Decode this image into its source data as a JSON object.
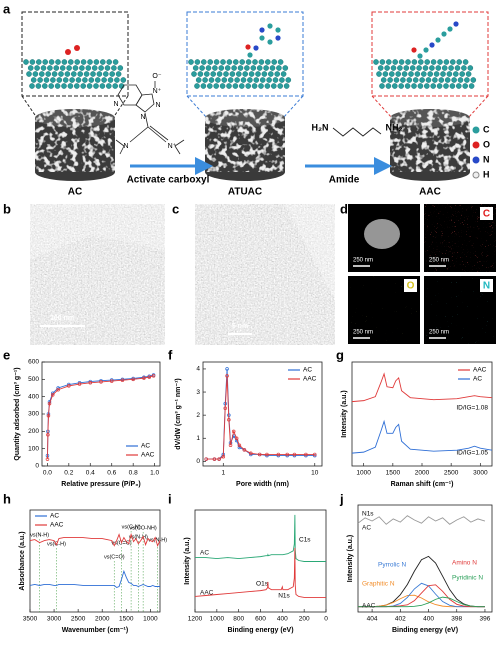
{
  "scheme": {
    "label": "a",
    "materials": [
      "AC",
      "ATUAC",
      "AAC"
    ],
    "steps": [
      "Activate carboxyl",
      "Amide"
    ],
    "reagent_labels": [
      "O⁻",
      "N⁺",
      "N",
      "N",
      "N",
      "N",
      "N⁺"
    ],
    "diamine": [
      "H₂N",
      "NH₂"
    ],
    "legend": [
      "C",
      "O",
      "N",
      "H"
    ]
  },
  "images": [
    {
      "label": "b",
      "scale_bar": "100 nm"
    },
    {
      "label": "c",
      "scale_bar": "5 nm"
    },
    {
      "label": "d",
      "tiles": [
        {
          "scale_bar": "250 nm"
        },
        {
          "scale_bar": "250 nm",
          "element": "C"
        },
        {
          "scale_bar": "250 nm",
          "element": "O"
        },
        {
          "scale_bar": "250 nm",
          "element": "N"
        }
      ]
    }
  ],
  "chart_data": [
    {
      "panel": "e",
      "type": "line",
      "xlabel": "Relative pressure (P/P₀)",
      "ylabel": "Quantity adsorbed (cm³ g⁻¹)",
      "x": [
        0.001,
        0.005,
        0.01,
        0.02,
        0.05,
        0.1,
        0.2,
        0.3,
        0.4,
        0.5,
        0.6,
        0.7,
        0.8,
        0.9,
        0.95,
        0.99
      ],
      "xlim": [
        -0.05,
        1.05
      ],
      "xticks": [
        {
          "value": 0,
          "label": "0.0"
        },
        0.2,
        0.4,
        0.6,
        0.8,
        {
          "value": 1,
          "label": "1.0"
        }
      ],
      "ylim": [
        0,
        600
      ],
      "yticks": [
        0,
        100,
        200,
        300,
        400,
        500,
        600
      ],
      "markers": true,
      "legend": "lower right",
      "series": [
        {
          "name": "AC",
          "color": "#2f6fd6",
          "values": [
            60,
            200,
            300,
            370,
            420,
            450,
            470,
            480,
            487,
            492,
            496,
            500,
            505,
            512,
            518,
            525
          ]
        },
        {
          "name": "AAC",
          "color": "#e03a3a",
          "values": [
            40,
            180,
            290,
            360,
            410,
            440,
            462,
            473,
            480,
            485,
            490,
            495,
            500,
            507,
            513,
            520
          ]
        }
      ]
    },
    {
      "panel": "f",
      "type": "line",
      "xlabel": "Pore width (nm)",
      "ylabel": "dV/dW (cm³ g⁻¹ nm⁻¹)",
      "log_x": true,
      "x": [
        0.65,
        0.8,
        0.9,
        1.0,
        1.05,
        1.1,
        1.15,
        1.2,
        1.3,
        1.4,
        1.5,
        1.7,
        2,
        2.5,
        3,
        4,
        5,
        6,
        8,
        10
      ],
      "xlim": [
        0.6,
        12
      ],
      "xticks": [
        1,
        10
      ],
      "ylim": [
        -0.2,
        4.3
      ],
      "yticks": [
        0,
        1,
        2,
        3,
        4
      ],
      "markers": true,
      "legend": "upper right",
      "series": [
        {
          "name": "AC",
          "color": "#2f6fd6",
          "values": [
            0.1,
            0.1,
            0.1,
            0.3,
            2.5,
            4.0,
            2.0,
            0.8,
            1.1,
            0.9,
            0.6,
            0.5,
            0.3,
            0.3,
            0.25,
            0.25,
            0.25,
            0.25,
            0.25,
            0.25
          ]
        },
        {
          "name": "AAC",
          "color": "#e03a3a",
          "values": [
            0.1,
            0.1,
            0.1,
            0.2,
            2.3,
            3.7,
            1.8,
            0.7,
            1.3,
            1.0,
            0.7,
            0.5,
            0.35,
            0.3,
            0.3,
            0.3,
            0.3,
            0.3,
            0.3,
            0.3
          ]
        }
      ]
    },
    {
      "panel": "g",
      "type": "line",
      "xlabel": "Raman shift (cm⁻¹)",
      "ylabel": "Intensity (a.u.)",
      "x": [
        800,
        1000,
        1200,
        1300,
        1350,
        1400,
        1500,
        1550,
        1600,
        1650,
        1800,
        2200,
        2600,
        2800,
        2900,
        3000,
        3200
      ],
      "xlim": [
        800,
        3200
      ],
      "xticks": [
        1000,
        1500,
        2000,
        2500,
        3000
      ],
      "ylim": [
        0,
        10.5
      ],
      "legend": "upper right",
      "annotations": [
        "ID/IG=1.08",
        "ID/IG=1.05"
      ],
      "series": [
        {
          "name": "AAC",
          "color": "#e03a3a",
          "values": [
            6.5,
            6.6,
            7.0,
            8.5,
            9.3,
            8.0,
            7.9,
            8.6,
            8.9,
            7.6,
            6.9,
            6.7,
            6.8,
            7.0,
            7.1,
            7.0,
            6.9
          ]
        },
        {
          "name": "AC",
          "color": "#2f6fd6",
          "values": [
            1.3,
            1.4,
            1.9,
            3.6,
            4.5,
            3.3,
            3.3,
            3.9,
            4.2,
            2.5,
            1.7,
            1.5,
            1.6,
            1.8,
            2.0,
            1.8,
            1.6
          ]
        }
      ]
    },
    {
      "panel": "h",
      "type": "line",
      "xlabel": "Wavenumber (cm⁻¹)",
      "ylabel": "Absorbance (a.u.)",
      "x": [
        3500,
        3400,
        3300,
        3200,
        3100,
        3000,
        2950,
        2900,
        2800,
        2600,
        2400,
        2200,
        2000,
        1900,
        1800,
        1750,
        1700,
        1650,
        1600,
        1550,
        1500,
        1450,
        1400,
        1350,
        1300,
        1250,
        1200,
        1150,
        1100,
        1050,
        1000,
        950,
        900,
        850,
        800
      ],
      "xlim": [
        3500,
        800
      ],
      "xticks": [
        3500,
        3000,
        2500,
        2000,
        1500,
        1000
      ],
      "ylim": [
        0,
        10
      ],
      "legend": "upper left",
      "annotations": [
        {
          "text": "νs(N-H)",
          "x": 3300
        },
        {
          "text": "νs(C-H)",
          "x": 2950
        },
        {
          "text": "νs(C=O)",
          "x": 1750
        },
        {
          "text": "νs(C=C)",
          "x": 1600
        },
        {
          "text": "νs(C-N)",
          "x": 1400
        },
        {
          "text": "νs(N-H)",
          "x": 1250
        },
        {
          "text": "νs(CO-NH)",
          "x": 1150
        },
        {
          "text": "νs(N-H)",
          "x": 850
        }
      ],
      "series": [
        {
          "name": "AC",
          "color": "#2f6fd6",
          "values": [
            2.6,
            2.7,
            2.6,
            2.7,
            2.7,
            2.6,
            2.6,
            2.7,
            2.7,
            2.7,
            2.6,
            2.6,
            2.6,
            2.6,
            2.6,
            2.6,
            2.4,
            2.5,
            3.2,
            4.0,
            3.4,
            2.9,
            2.8,
            2.6,
            2.6,
            2.5,
            2.6,
            2.7,
            2.6,
            2.5,
            2.5,
            2.6,
            2.5,
            2.5,
            2.5
          ]
        },
        {
          "name": "AAC",
          "color": "#e03a3a",
          "values": [
            7.0,
            7.1,
            6.8,
            7.0,
            7.1,
            7.0,
            6.6,
            7.2,
            7.3,
            7.3,
            7.3,
            7.2,
            7.2,
            7.1,
            7.0,
            6.5,
            7.0,
            7.6,
            6.8,
            7.3,
            6.9,
            6.7,
            7.6,
            6.9,
            7.2,
            6.7,
            7.0,
            7.4,
            6.6,
            7.2,
            7.0,
            6.9,
            7.3,
            6.5,
            7.0
          ]
        }
      ]
    },
    {
      "panel": "i",
      "type": "line",
      "xlabel": "Binding energy (eV)",
      "ylabel": "Intensity (a.u.)",
      "x": [
        1200,
        1100,
        1000,
        900,
        800,
        700,
        600,
        550,
        535,
        532,
        529,
        500,
        450,
        410,
        400,
        395,
        350,
        300,
        290,
        285,
        282,
        275,
        250,
        200,
        100,
        0
      ],
      "xlim": [
        1200,
        0
      ],
      "xticks": [
        1200,
        1000,
        800,
        600,
        400,
        200,
        0
      ],
      "ylim": [
        0,
        10.5
      ],
      "legend": "inline",
      "annotations": [
        "C1s",
        "O1s",
        "N1s"
      ],
      "series": [
        {
          "name": "AC",
          "color": "#2aa876",
          "values": [
            5.6,
            5.6,
            5.5,
            5.6,
            5.5,
            5.6,
            5.7,
            5.8,
            5.8,
            5.9,
            5.8,
            5.9,
            5.9,
            5.9,
            5.9,
            5.9,
            6.0,
            6.3,
            7.0,
            10.0,
            6.4,
            5.5,
            5.3,
            5.2,
            5.2,
            5.2
          ]
        },
        {
          "name": "AAC",
          "color": "#e03a3a",
          "values": [
            1.6,
            1.7,
            1.8,
            1.9,
            2.0,
            2.1,
            2.2,
            2.3,
            2.5,
            3.1,
            2.5,
            2.3,
            2.3,
            2.3,
            2.6,
            2.3,
            2.3,
            2.6,
            3.5,
            6.6,
            2.8,
            1.8,
            1.6,
            1.5,
            1.5,
            1.5
          ]
        }
      ]
    },
    {
      "panel": "j",
      "type": "line",
      "xlabel": "Binding energy (eV)",
      "ylabel": "Intensity (a.u.)",
      "x": [
        405,
        404.5,
        404,
        403.5,
        403,
        402.5,
        402,
        401.5,
        401,
        400.5,
        400,
        399.5,
        399,
        398.5,
        398,
        397.5,
        397,
        396.5,
        396
      ],
      "xlim": [
        405,
        395.5
      ],
      "xticks": [
        404,
        402,
        400,
        398,
        396
      ],
      "ylim": [
        0,
        10
      ],
      "legend": "inline",
      "annotations": [
        "N1s"
      ],
      "series": [
        {
          "name": "AC",
          "color": "#9a9a9a",
          "values": [
            8.3,
            8.8,
            8.5,
            8.9,
            8.2,
            8.7,
            8.4,
            9.0,
            8.6,
            8.3,
            8.9,
            8.5,
            8.8,
            8.2,
            8.6,
            8.9,
            8.4,
            8.7,
            8.5
          ]
        },
        {
          "name": "AAC",
          "color": "#222222",
          "values": [
            0.5,
            0.5,
            0.5,
            0.54,
            0.65,
            0.96,
            1.62,
            2.57,
            3.82,
            4.88,
            5.2,
            4.58,
            3.35,
            2.1,
            1.2,
            0.75,
            0.55,
            0.5,
            0.5
          ]
        },
        {
          "name": "Graphitic N",
          "color": "#f28c28",
          "values": [
            0.5,
            0.5,
            0.5,
            0.54,
            0.65,
            0.89,
            1.24,
            1.54,
            1.57,
            1.31,
            0.95,
            0.69,
            0.55,
            0.5,
            0.5,
            0.5,
            0.5,
            0.5,
            0.5
          ]
        },
        {
          "name": "Pyrrolic N",
          "color": "#3a7bd5",
          "values": [
            0.5,
            0.5,
            0.5,
            0.5,
            0.5,
            0.57,
            0.8,
            1.36,
            2.16,
            2.68,
            2.44,
            1.67,
            0.98,
            0.63,
            0.5,
            0.5,
            0.5,
            0.5,
            0.5
          ]
        },
        {
          "name": "Amino N",
          "color": "#e03a3a",
          "values": [
            0.5,
            0.5,
            0.5,
            0.5,
            0.5,
            0.53,
            0.58,
            0.67,
            1.06,
            1.77,
            2.46,
            2.54,
            1.93,
            1.18,
            0.72,
            0.55,
            0.5,
            0.5,
            0.5
          ]
        },
        {
          "name": "Pyridinic N",
          "color": "#2ca05a",
          "values": [
            0.5,
            0.5,
            0.5,
            0.5,
            0.5,
            0.5,
            0.5,
            0.5,
            0.53,
            0.62,
            0.85,
            1.18,
            1.39,
            1.29,
            0.98,
            0.7,
            0.55,
            0.5,
            0.5
          ]
        }
      ]
    }
  ]
}
